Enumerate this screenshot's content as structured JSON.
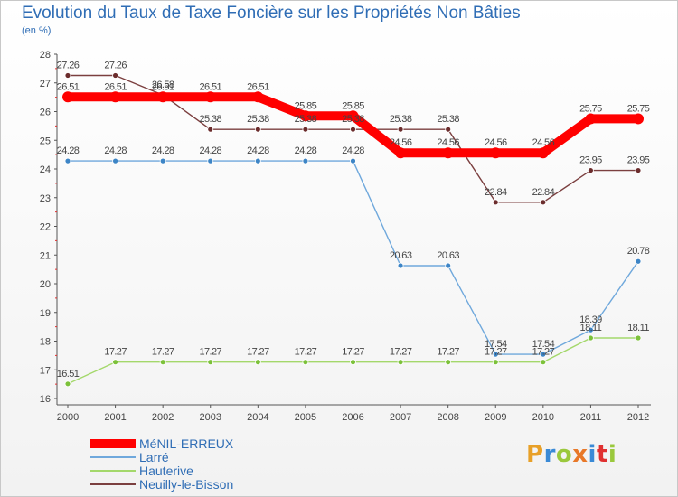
{
  "header": {
    "title": "Evolution du Taux de Taxe Foncière sur les Propriétés Non Bâties",
    "subtitle": "(en %)"
  },
  "logo": {
    "text": "Proxiti",
    "colors": [
      "#e8a028",
      "#3a8ad6",
      "#9ac83c",
      "#e87828",
      "#3a8ad6",
      "#e03030",
      "#9ac83c"
    ]
  },
  "chart_data": {
    "type": "line",
    "x": [
      "2000",
      "2001",
      "2002",
      "2003",
      "2004",
      "2005",
      "2006",
      "2007",
      "2008",
      "2009",
      "2010",
      "2011",
      "2012"
    ],
    "ylim": [
      16,
      28
    ],
    "yticks": [
      "16",
      "17",
      "18",
      "19",
      "20",
      "21",
      "22",
      "23",
      "24",
      "25",
      "26",
      "27",
      "28"
    ],
    "grid": false,
    "legend_position": "bottom-left",
    "series": [
      {
        "name": "MéNIL-ERREUX",
        "color": "#ff0000",
        "values": [
          26.51,
          26.51,
          26.51,
          26.51,
          26.51,
          25.85,
          25.85,
          24.56,
          24.56,
          24.56,
          24.56,
          25.75,
          25.75
        ],
        "labels": [
          "26.51",
          "26.51",
          "26.51",
          "26.51",
          "26.51",
          "25.85",
          "25.85",
          "24.56",
          "24.56",
          "24.56",
          "24.56",
          "25.75",
          "25.75"
        ]
      },
      {
        "name": "Larré",
        "color": "#6fa8dc",
        "marker": "#3d85c6",
        "values": [
          24.28,
          24.28,
          24.28,
          24.28,
          24.28,
          24.28,
          24.28,
          20.63,
          20.63,
          17.54,
          17.54,
          18.39,
          20.78
        ],
        "labels": [
          "24.28",
          "24.28",
          "24.28",
          "24.28",
          "24.28",
          "24.28",
          "24.28",
          "20.63",
          "20.63",
          "17.54",
          "17.54",
          "18.39",
          "20.78"
        ]
      },
      {
        "name": "Hauterive",
        "color": "#a4d86b",
        "marker": "#7cc13a",
        "values": [
          16.51,
          17.27,
          17.27,
          17.27,
          17.27,
          17.27,
          17.27,
          17.27,
          17.27,
          17.27,
          17.27,
          18.11,
          18.11
        ],
        "labels": [
          "16.51",
          "17.27",
          "17.27",
          "17.27",
          "17.27",
          "17.27",
          "17.27",
          "17.27",
          "17.27",
          "17.27",
          "17.27",
          "18.11",
          "18.11"
        ]
      },
      {
        "name": "Neuilly-le-Bisson",
        "color": "#7b3f3f",
        "marker": "#6b2c2c",
        "values": [
          27.26,
          27.26,
          26.58,
          25.38,
          25.38,
          25.38,
          25.38,
          25.38,
          25.38,
          22.84,
          22.84,
          23.95,
          23.95
        ],
        "labels": [
          "27.26",
          "27.26",
          "26.58",
          "25.38",
          "25.38",
          "25.38",
          "25.38",
          "25.38",
          "25.38",
          "22.84",
          "22.84",
          "23.95",
          "23.95"
        ]
      }
    ]
  }
}
